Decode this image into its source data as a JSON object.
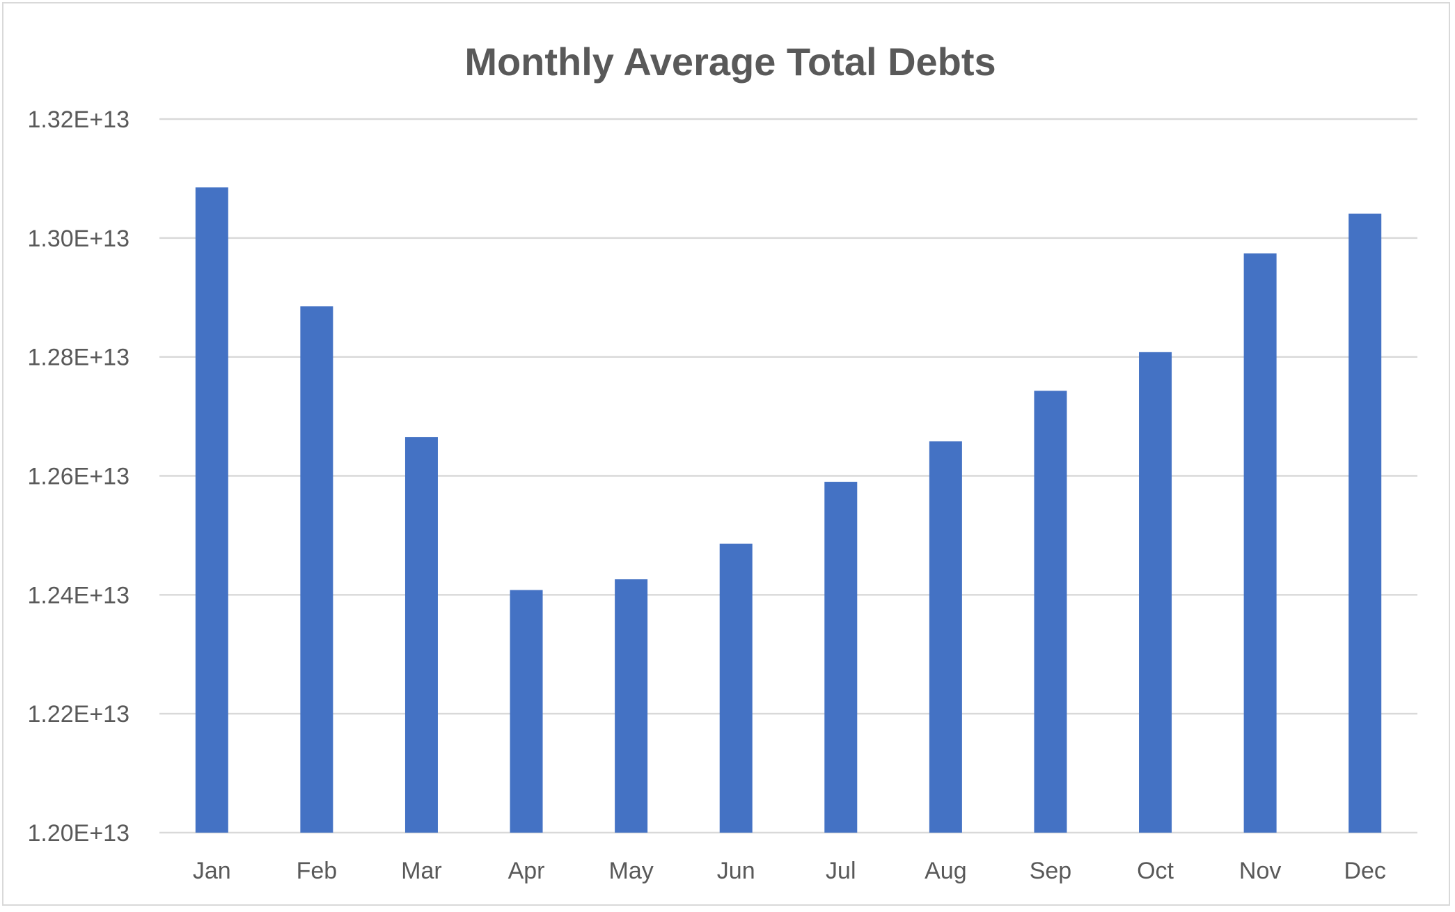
{
  "chart_data": {
    "type": "bar",
    "title": "Monthly Average Total Debts",
    "categories": [
      "Jan",
      "Feb",
      "Mar",
      "Apr",
      "May",
      "Jun",
      "Jul",
      "Aug",
      "Sep",
      "Oct",
      "Nov",
      "Dec"
    ],
    "values": [
      13085000000000,
      12885000000000,
      12665000000000,
      12408000000000,
      12426000000000,
      12486000000000,
      12590000000000,
      12658000000000,
      12743000000000,
      12808000000000,
      12974000000000,
      13041000000000
    ],
    "yticks": [
      "1.20E+13",
      "1.22E+13",
      "1.24E+13",
      "1.26E+13",
      "1.28E+13",
      "1.30E+13",
      "1.32E+13"
    ],
    "ylim": [
      12000000000000,
      13200000000000
    ],
    "xlabel": "",
    "ylabel": "",
    "grid": true,
    "legend": "none",
    "bar_color": "#4472C4",
    "grid_color": "#d9d9d9",
    "text_color": "#595959"
  }
}
